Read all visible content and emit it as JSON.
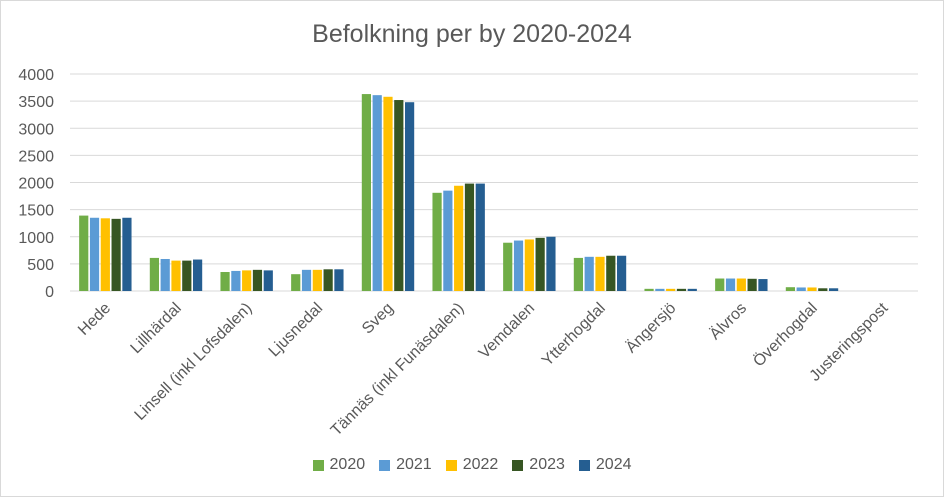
{
  "chart_data": {
    "type": "bar",
    "title": "Befolkning per by 2020-2024",
    "xlabel": "",
    "ylabel": "",
    "ylim": [
      0,
      4000
    ],
    "yticks": [
      "0",
      "500",
      "1000",
      "1500",
      "2000",
      "2500",
      "3000",
      "3500",
      "4000"
    ],
    "grid": true,
    "legend_position": "bottom",
    "categories": [
      "Hede",
      "Lillhärdal",
      "Linsell (inkl Lofsdalen)",
      "Ljusnedal",
      "Sveg",
      "Tännäs (inkl Funäsdalen)",
      "Vemdalen",
      "Ytterhogdal",
      "Ängersjö",
      "Älvros",
      "Överhogdal",
      "Justeringspost"
    ],
    "series": [
      {
        "name": "2020",
        "color": "#70ad47",
        "values": [
          1390,
          610,
          350,
          310,
          3630,
          1810,
          890,
          610,
          40,
          230,
          70,
          0
        ]
      },
      {
        "name": "2021",
        "color": "#5b9bd5",
        "values": [
          1350,
          590,
          370,
          390,
          3610,
          1850,
          930,
          630,
          40,
          230,
          65,
          0
        ]
      },
      {
        "name": "2022",
        "color": "#ffc000",
        "values": [
          1340,
          560,
          380,
          390,
          3580,
          1940,
          950,
          630,
          40,
          230,
          65,
          0
        ]
      },
      {
        "name": "2023",
        "color": "#375623",
        "values": [
          1330,
          560,
          390,
          400,
          3520,
          1980,
          980,
          650,
          40,
          225,
          50,
          0
        ]
      },
      {
        "name": "2024",
        "color": "#255e91",
        "values": [
          1350,
          580,
          380,
          400,
          3480,
          1980,
          1000,
          650,
          40,
          220,
          50,
          0
        ]
      }
    ]
  }
}
